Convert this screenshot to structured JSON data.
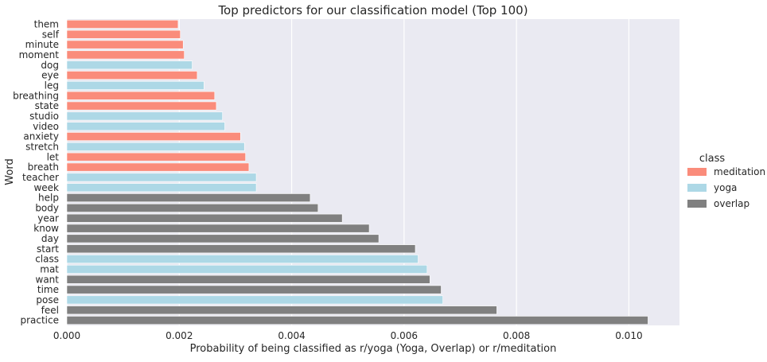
{
  "chart_data": {
    "type": "bar",
    "orientation": "horizontal",
    "title": "Top predictors for our classification model (Top 100)",
    "xlabel": "Probability of being classified as r/yoga (Yoga, Overlap) or r/meditation",
    "ylabel": "Word",
    "xlim": [
      0,
      0.0109
    ],
    "xticks": [
      0.0,
      0.002,
      0.004,
      0.006,
      0.008,
      0.01
    ],
    "xtick_labels": [
      "0.000",
      "0.002",
      "0.004",
      "0.006",
      "0.008",
      "0.010"
    ],
    "grid": "vertical",
    "legend": {
      "title": "class",
      "placement": "right",
      "entries": [
        {
          "label": "meditation",
          "color": "#fa8c7b"
        },
        {
          "label": "yoga",
          "color": "#add8e6"
        },
        {
          "label": "overlap",
          "color": "#808080"
        }
      ]
    },
    "bars": [
      {
        "word": "them",
        "value": 0.00198,
        "class": "meditation"
      },
      {
        "word": "self",
        "value": 0.00202,
        "class": "meditation"
      },
      {
        "word": "minute",
        "value": 0.00207,
        "class": "meditation"
      },
      {
        "word": "moment",
        "value": 0.00209,
        "class": "meditation"
      },
      {
        "word": "dog",
        "value": 0.00223,
        "class": "yoga"
      },
      {
        "word": "eye",
        "value": 0.00232,
        "class": "meditation"
      },
      {
        "word": "leg",
        "value": 0.00244,
        "class": "yoga"
      },
      {
        "word": "breathing",
        "value": 0.00263,
        "class": "meditation"
      },
      {
        "word": "state",
        "value": 0.00266,
        "class": "meditation"
      },
      {
        "word": "studio",
        "value": 0.00277,
        "class": "yoga"
      },
      {
        "word": "video",
        "value": 0.00281,
        "class": "yoga"
      },
      {
        "word": "anxiety",
        "value": 0.00309,
        "class": "meditation"
      },
      {
        "word": "stretch",
        "value": 0.00316,
        "class": "yoga"
      },
      {
        "word": "let",
        "value": 0.00318,
        "class": "meditation"
      },
      {
        "word": "breath",
        "value": 0.00324,
        "class": "meditation"
      },
      {
        "word": "teacher",
        "value": 0.00337,
        "class": "yoga"
      },
      {
        "word": "week",
        "value": 0.00337,
        "class": "yoga"
      },
      {
        "word": "help",
        "value": 0.00433,
        "class": "overlap"
      },
      {
        "word": "body",
        "value": 0.00447,
        "class": "overlap"
      },
      {
        "word": "year",
        "value": 0.0049,
        "class": "overlap"
      },
      {
        "word": "know",
        "value": 0.00538,
        "class": "overlap"
      },
      {
        "word": "day",
        "value": 0.00555,
        "class": "overlap"
      },
      {
        "word": "start",
        "value": 0.0062,
        "class": "overlap"
      },
      {
        "word": "class",
        "value": 0.00625,
        "class": "yoga"
      },
      {
        "word": "mat",
        "value": 0.00641,
        "class": "yoga"
      },
      {
        "word": "want",
        "value": 0.00646,
        "class": "overlap"
      },
      {
        "word": "time",
        "value": 0.00666,
        "class": "overlap"
      },
      {
        "word": "pose",
        "value": 0.00669,
        "class": "yoga"
      },
      {
        "word": "feel",
        "value": 0.00765,
        "class": "overlap"
      },
      {
        "word": "practice",
        "value": 0.01034,
        "class": "overlap"
      }
    ]
  }
}
